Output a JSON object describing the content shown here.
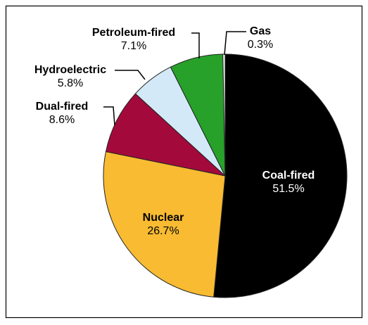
{
  "chart_data": {
    "type": "pie",
    "categories": [
      "Coal-fired",
      "Nuclear",
      "Dual-fired",
      "Hydroelectric",
      "Petroleum-fired",
      "Gas"
    ],
    "values": [
      51.5,
      26.7,
      8.6,
      5.8,
      7.1,
      0.3
    ],
    "value_labels": [
      "51.5%",
      "26.7%",
      "8.6%",
      "5.8%",
      "7.1%",
      "0.3%"
    ],
    "colors": [
      "#000000",
      "#f8bb32",
      "#a30a3b",
      "#d3e9f7",
      "#27a12a",
      "#ffffff"
    ],
    "start_angle": 0,
    "direction": "clockwise"
  }
}
